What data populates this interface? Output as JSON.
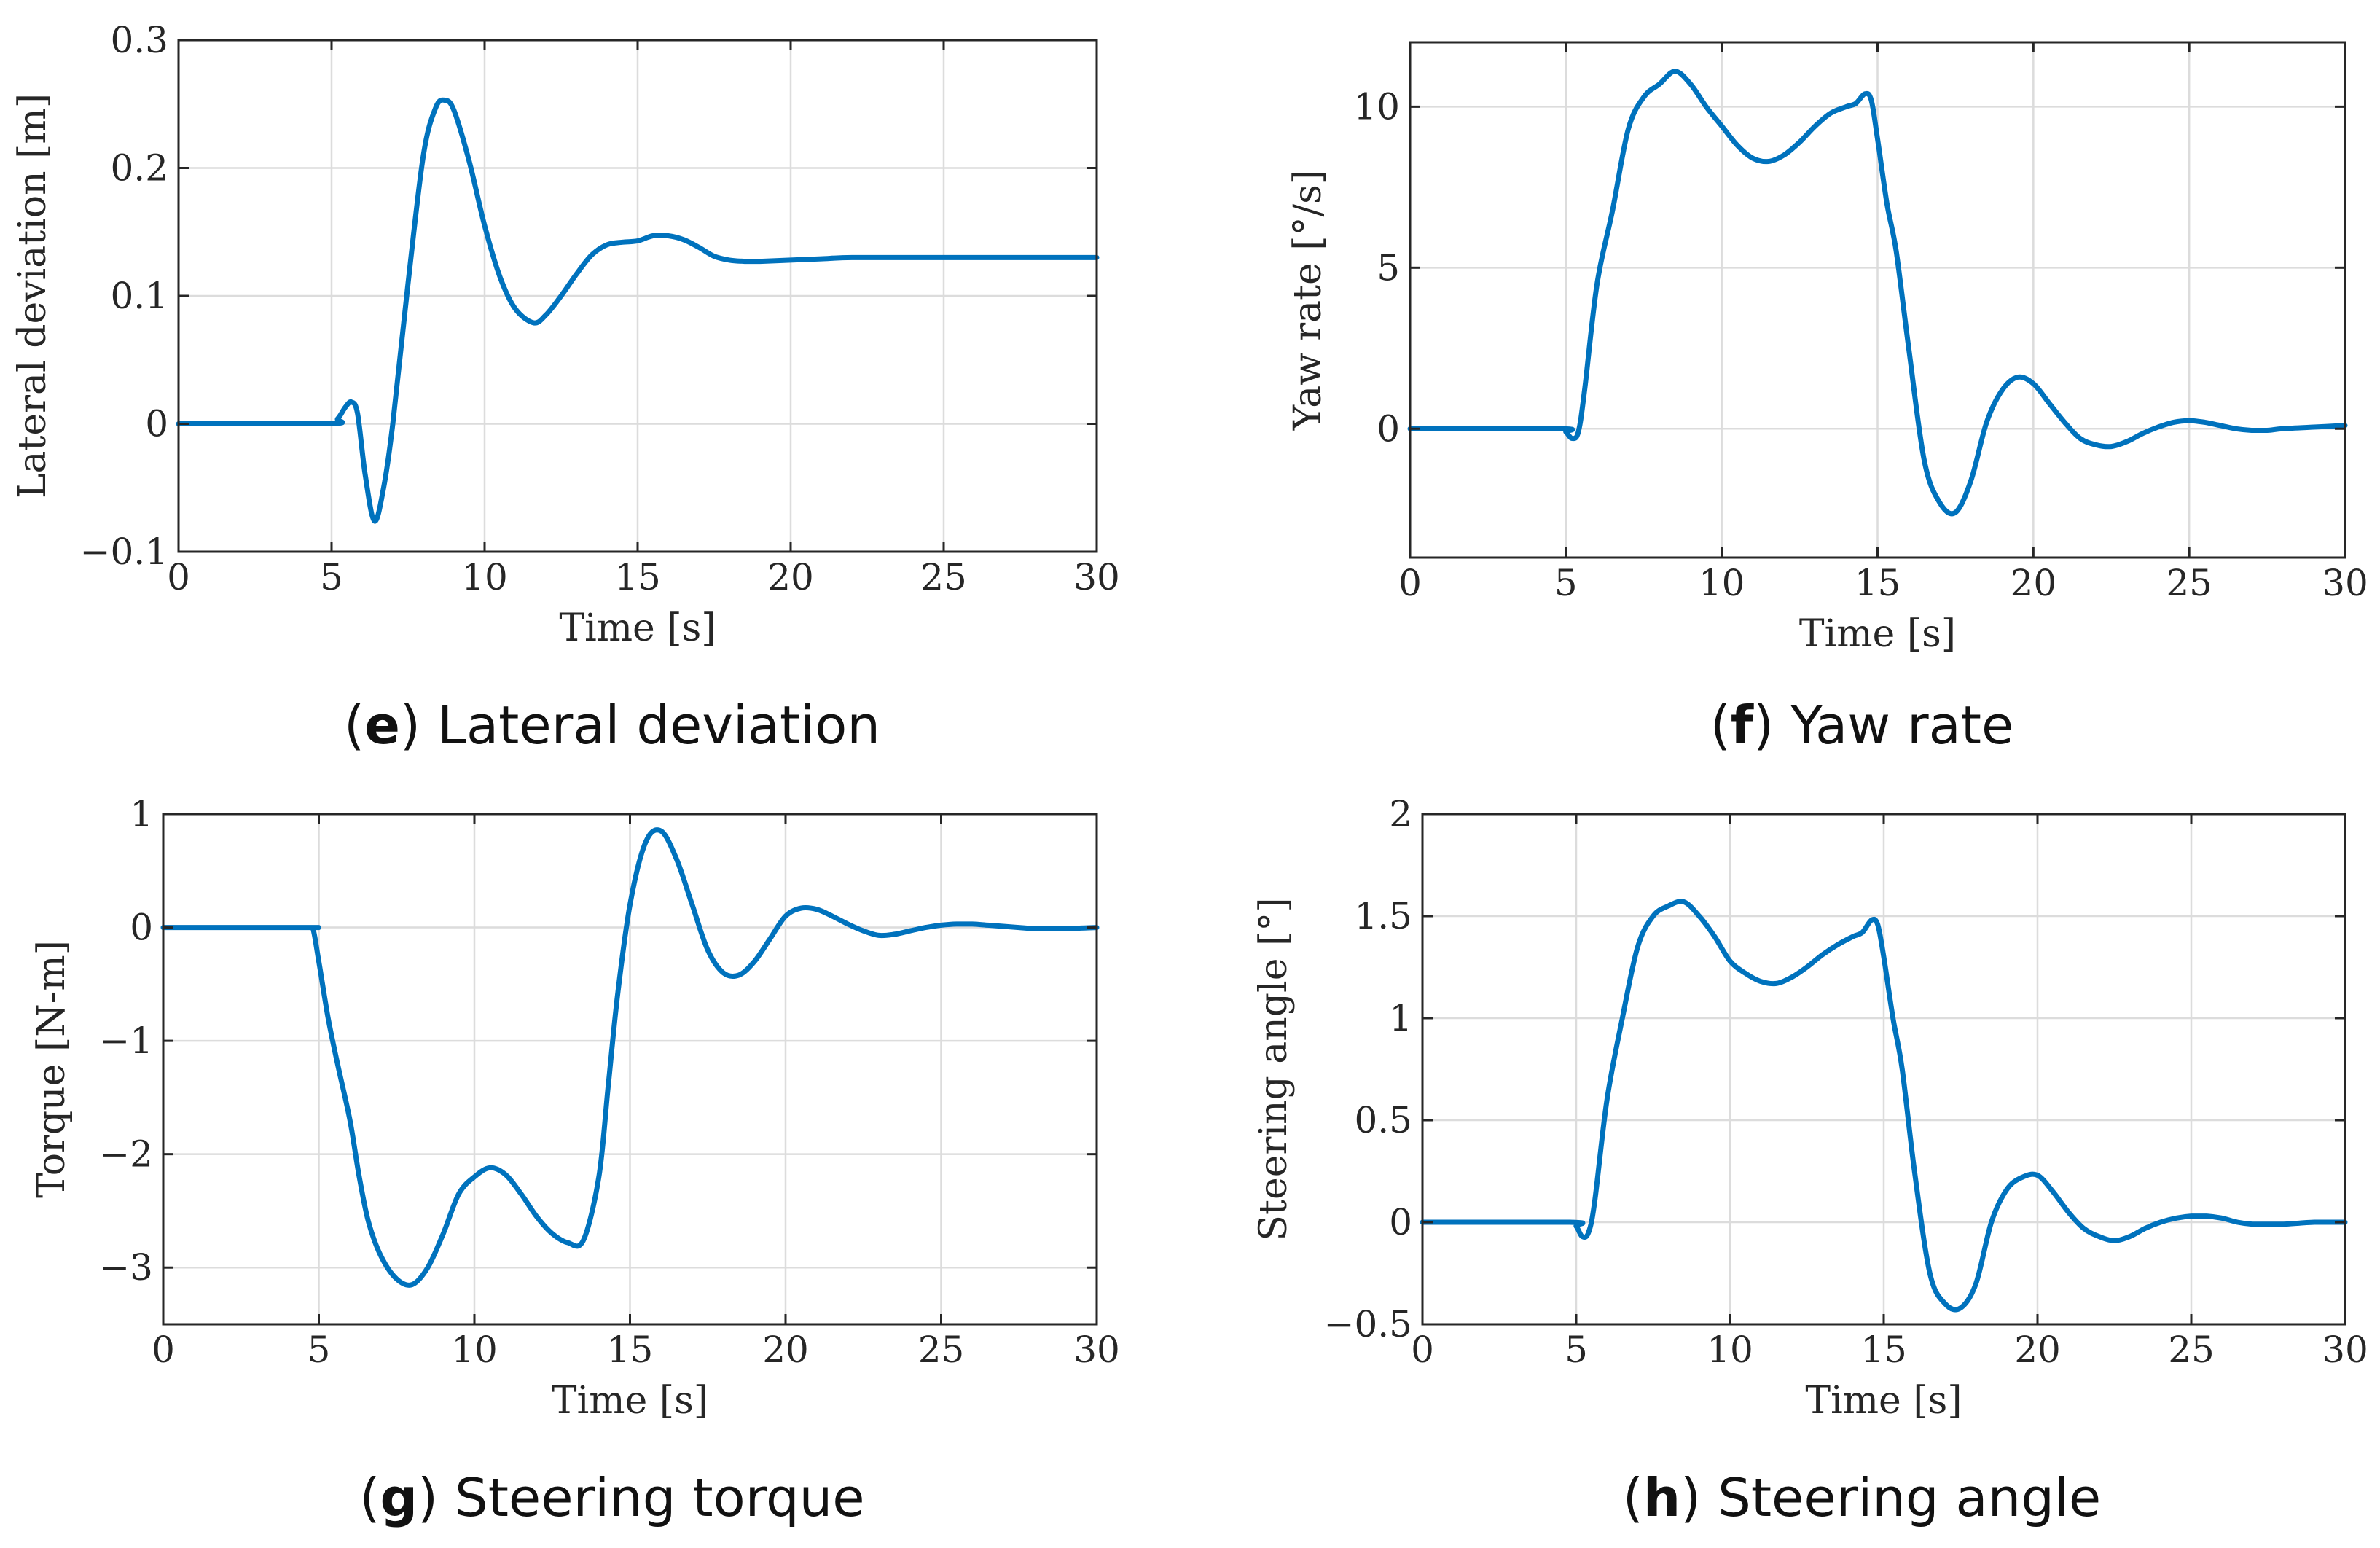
{
  "colors": {
    "series": "#0072BD"
  },
  "chart_data": [
    {
      "id": "e",
      "type": "line",
      "caption_letter": "e",
      "caption_text": "Lateral deviation",
      "xlabel": "Time [s]",
      "ylabel": "Lateral deviation [m]",
      "xlim": [
        0,
        30
      ],
      "ylim": [
        -0.1,
        0.3
      ],
      "xticks": [
        0,
        5,
        10,
        15,
        20,
        25,
        30
      ],
      "xtick_labels": [
        "0",
        "5",
        "10",
        "15",
        "20",
        "25",
        "30"
      ],
      "yticks": [
        -0.1,
        0,
        0.1,
        0.2,
        0.3
      ],
      "ytick_labels": [
        "−0.1",
        "0",
        "0.1",
        "0.2",
        "0.3"
      ],
      "grid": true,
      "series": [
        {
          "name": "Lateral deviation",
          "x": [
            0,
            4.9,
            5.2,
            5.45,
            5.65,
            5.85,
            6.1,
            6.4,
            6.7,
            7.0,
            7.5,
            8.0,
            8.4,
            8.7,
            9.0,
            9.5,
            10.0,
            10.5,
            11.0,
            11.6,
            12.0,
            12.5,
            13.0,
            13.5,
            14.0,
            14.5,
            15.0,
            15.5,
            16.0,
            16.5,
            17.0,
            17.5,
            18.0,
            18.5,
            19.0,
            20.0,
            21.0,
            22.0,
            24.0,
            26.0,
            28.0,
            30.0
          ],
          "y": [
            0,
            0,
            0.004,
            0.013,
            0.017,
            0.008,
            -0.04,
            -0.076,
            -0.05,
            0.0,
            0.11,
            0.21,
            0.247,
            0.253,
            0.245,
            0.205,
            0.155,
            0.115,
            0.09,
            0.079,
            0.085,
            0.1,
            0.117,
            0.132,
            0.14,
            0.142,
            0.143,
            0.147,
            0.147,
            0.144,
            0.138,
            0.131,
            0.128,
            0.127,
            0.127,
            0.128,
            0.129,
            0.13,
            0.13,
            0.13,
            0.13,
            0.13
          ]
        }
      ]
    },
    {
      "id": "f",
      "type": "line",
      "caption_letter": "f",
      "caption_text": "Yaw rate",
      "xlabel": "Time [s]",
      "ylabel": "Yaw rate [°/s]",
      "xlim": [
        0,
        30
      ],
      "ylim": [
        -4,
        12
      ],
      "xticks": [
        0,
        5,
        10,
        15,
        20,
        25,
        30
      ],
      "xtick_labels": [
        "0",
        "5",
        "10",
        "15",
        "20",
        "25",
        "30"
      ],
      "yticks": [
        0,
        5,
        10
      ],
      "ytick_labels": [
        "0",
        "5",
        "10"
      ],
      "grid": true,
      "series": [
        {
          "name": "Yaw rate",
          "x": [
            0,
            4.8,
            5.0,
            5.2,
            5.4,
            5.6,
            6.0,
            6.5,
            7.0,
            7.5,
            8.0,
            8.5,
            9.0,
            9.5,
            10.0,
            10.5,
            11.0,
            11.5,
            12.0,
            12.5,
            13.0,
            13.5,
            14.0,
            14.3,
            14.6,
            14.8,
            15.0,
            15.3,
            15.6,
            16.0,
            16.5,
            17.0,
            17.5,
            18.0,
            18.5,
            19.0,
            19.5,
            20.0,
            20.5,
            21.0,
            21.5,
            22.0,
            22.5,
            23.0,
            23.5,
            24.0,
            24.5,
            25.0,
            25.5,
            26.0,
            26.5,
            27.0,
            27.5,
            28.0,
            29.0,
            30.0
          ],
          "y": [
            0,
            0,
            -0.1,
            -0.3,
            -0.1,
            1.2,
            4.5,
            6.8,
            9.3,
            10.3,
            10.7,
            11.1,
            10.7,
            10.0,
            9.4,
            8.8,
            8.4,
            8.3,
            8.5,
            8.9,
            9.4,
            9.8,
            10.0,
            10.1,
            10.4,
            10.2,
            9.0,
            7.0,
            5.5,
            2.5,
            -1.0,
            -2.3,
            -2.6,
            -1.6,
            0.2,
            1.2,
            1.6,
            1.4,
            0.8,
            0.2,
            -0.3,
            -0.5,
            -0.55,
            -0.4,
            -0.15,
            0.05,
            0.2,
            0.25,
            0.2,
            0.1,
            0.0,
            -0.05,
            -0.05,
            0.0,
            0.05,
            0.1
          ]
        }
      ]
    },
    {
      "id": "g",
      "type": "line",
      "caption_letter": "g",
      "caption_text": "Steering torque",
      "xlabel": "Time [s]",
      "ylabel": "Torque [N-m]",
      "xlim": [
        0,
        30
      ],
      "ylim": [
        -3.5,
        1
      ],
      "xticks": [
        0,
        5,
        10,
        15,
        20,
        25,
        30
      ],
      "xtick_labels": [
        "0",
        "5",
        "10",
        "15",
        "20",
        "25",
        "30"
      ],
      "yticks": [
        -3,
        -2,
        -1,
        0,
        1
      ],
      "ytick_labels": [
        "−3",
        "−2",
        "−1",
        "0",
        "1"
      ],
      "grid": true,
      "series": [
        {
          "name": "Steering torque",
          "x": [
            0,
            4.6,
            4.8,
            5.0,
            5.3,
            5.6,
            6.0,
            6.3,
            6.6,
            7.0,
            7.5,
            8.0,
            8.5,
            9.0,
            9.5,
            10.0,
            10.5,
            11.0,
            11.5,
            12.0,
            12.5,
            13.0,
            13.5,
            14.0,
            14.3,
            14.6,
            15.0,
            15.5,
            16.0,
            16.5,
            17.0,
            17.5,
            18.0,
            18.5,
            19.0,
            19.5,
            20.0,
            20.5,
            21.0,
            21.5,
            22.0,
            22.5,
            23.0,
            23.5,
            24.0,
            24.5,
            25.0,
            25.5,
            26.0,
            26.5,
            27.0,
            27.5,
            28.0,
            29.0,
            30.0
          ],
          "y": [
            0,
            0,
            0,
            -0.3,
            -0.8,
            -1.2,
            -1.7,
            -2.2,
            -2.6,
            -2.9,
            -3.1,
            -3.15,
            -3.0,
            -2.7,
            -2.35,
            -2.2,
            -2.12,
            -2.18,
            -2.35,
            -2.55,
            -2.7,
            -2.78,
            -2.76,
            -2.2,
            -1.4,
            -0.6,
            0.2,
            0.75,
            0.85,
            0.6,
            0.2,
            -0.2,
            -0.4,
            -0.42,
            -0.3,
            -0.1,
            0.1,
            0.17,
            0.16,
            0.1,
            0.03,
            -0.03,
            -0.07,
            -0.06,
            -0.03,
            0.0,
            0.02,
            0.03,
            0.03,
            0.02,
            0.01,
            0.0,
            -0.01,
            -0.01,
            0.0
          ]
        }
      ]
    },
    {
      "id": "h",
      "type": "line",
      "caption_letter": "h",
      "caption_text": "Steering angle",
      "xlabel": "Time [s]",
      "ylabel": "Steering angle [°]",
      "xlim": [
        0,
        30
      ],
      "ylim": [
        -0.5,
        2
      ],
      "xticks": [
        0,
        5,
        10,
        15,
        20,
        25,
        30
      ],
      "xtick_labels": [
        "0",
        "5",
        "10",
        "15",
        "20",
        "25",
        "30"
      ],
      "yticks": [
        -0.5,
        0,
        0.5,
        1,
        1.5,
        2
      ],
      "ytick_labels": [
        "−0.5",
        "0",
        "0.5",
        "1",
        "1.5",
        "2"
      ],
      "grid": true,
      "series": [
        {
          "name": "Steering angle",
          "x": [
            0,
            4.8,
            5.0,
            5.2,
            5.4,
            5.6,
            6.0,
            6.5,
            7.0,
            7.5,
            8.0,
            8.5,
            9.0,
            9.5,
            10.0,
            10.5,
            11.0,
            11.5,
            12.0,
            12.5,
            13.0,
            13.5,
            14.0,
            14.3,
            14.6,
            14.8,
            15.0,
            15.3,
            15.6,
            16.0,
            16.5,
            17.0,
            17.5,
            18.0,
            18.5,
            19.0,
            19.5,
            20.0,
            20.5,
            21.0,
            21.5,
            22.0,
            22.5,
            23.0,
            23.5,
            24.0,
            24.5,
            25.0,
            25.5,
            26.0,
            26.5,
            27.0,
            27.5,
            28.0,
            29.0,
            30.0
          ],
          "y": [
            0,
            0,
            -0.02,
            -0.07,
            -0.05,
            0.1,
            0.6,
            1.0,
            1.35,
            1.5,
            1.55,
            1.57,
            1.5,
            1.4,
            1.28,
            1.22,
            1.18,
            1.17,
            1.2,
            1.25,
            1.31,
            1.36,
            1.4,
            1.42,
            1.48,
            1.46,
            1.3,
            1.0,
            0.75,
            0.25,
            -0.25,
            -0.4,
            -0.42,
            -0.3,
            0.0,
            0.16,
            0.22,
            0.23,
            0.15,
            0.05,
            -0.03,
            -0.07,
            -0.09,
            -0.07,
            -0.03,
            0.0,
            0.02,
            0.03,
            0.03,
            0.02,
            0.0,
            -0.01,
            -0.01,
            -0.01,
            0.0,
            0.0
          ]
        }
      ]
    }
  ]
}
